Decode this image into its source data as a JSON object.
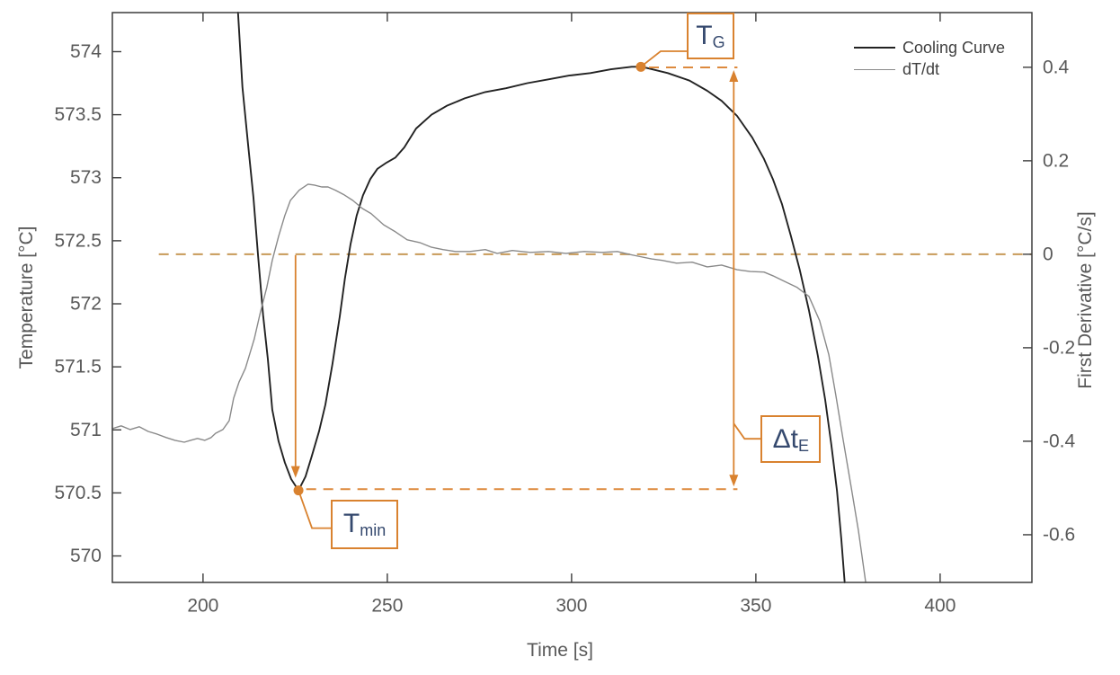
{
  "chart_data": {
    "type": "line",
    "title": "",
    "xlabel": "Time [s]",
    "ylabel_left": "Temperature [°C]",
    "ylabel_right": "First Derivative [°C/s]",
    "xlim": [
      175.4,
      424.9
    ],
    "ylim_left": [
      569.79,
      574.31
    ],
    "ylim_right": [
      -0.702,
      0.517
    ],
    "grid": "off",
    "x_ticks": [
      {
        "v": 200,
        "label": "200"
      },
      {
        "v": 250,
        "label": "250"
      },
      {
        "v": 300,
        "label": "300"
      },
      {
        "v": 350,
        "label": "350"
      },
      {
        "v": 400,
        "label": "400"
      }
    ],
    "y_ticks_left": [
      {
        "v": 574,
        "label": "574"
      },
      {
        "v": 573.5,
        "label": "573.5"
      },
      {
        "v": 573,
        "label": "573"
      },
      {
        "v": 572.5,
        "label": "572.5"
      },
      {
        "v": 572,
        "label": "572"
      },
      {
        "v": 571.5,
        "label": "571.5"
      },
      {
        "v": 571,
        "label": "571"
      },
      {
        "v": 570.5,
        "label": "570.5"
      },
      {
        "v": 570,
        "label": "570"
      }
    ],
    "y_ticks_right": [
      {
        "v": 0.4,
        "label": "0.4"
      },
      {
        "v": 0.2,
        "label": "0.2"
      },
      {
        "v": 0,
        "label": "0"
      },
      {
        "v": -0.2,
        "label": "-0.2"
      },
      {
        "v": -0.4,
        "label": "-0.4"
      },
      {
        "v": -0.6,
        "label": "-0.6"
      }
    ],
    "legend": {
      "position": "top-right-inside",
      "entries": [
        {
          "label": "Cooling Curve",
          "color": "#222222",
          "width": 2
        },
        {
          "label": "dT/dt",
          "color": "#8a8a8a",
          "width": 1.5
        }
      ]
    },
    "series": [
      {
        "name": "Cooling Curve",
        "axis": "left",
        "color": "#222222",
        "width": 1.9,
        "points": [
          [
            209.5,
            574.31
          ],
          [
            210.7,
            573.72
          ],
          [
            212.2,
            573.27
          ],
          [
            213.7,
            572.84
          ],
          [
            214.9,
            572.39
          ],
          [
            216.3,
            571.91
          ],
          [
            217.6,
            571.56
          ],
          [
            218.8,
            571.16
          ],
          [
            220.5,
            570.91
          ],
          [
            222.2,
            570.74
          ],
          [
            223.9,
            570.61
          ],
          [
            225.9,
            570.52
          ],
          [
            227.8,
            570.63
          ],
          [
            229.5,
            570.79
          ],
          [
            231.5,
            570.99
          ],
          [
            233.2,
            571.2
          ],
          [
            235.1,
            571.52
          ],
          [
            237.1,
            571.9
          ],
          [
            238.5,
            572.2
          ],
          [
            240,
            572.47
          ],
          [
            241.7,
            572.7
          ],
          [
            243.4,
            572.86
          ],
          [
            245.4,
            572.99
          ],
          [
            247.3,
            573.07
          ],
          [
            249.8,
            573.12
          ],
          [
            252.2,
            573.16
          ],
          [
            254.6,
            573.24
          ],
          [
            257.8,
            573.39
          ],
          [
            262,
            573.5
          ],
          [
            266.1,
            573.57
          ],
          [
            271,
            573.63
          ],
          [
            276.6,
            573.68
          ],
          [
            282.2,
            573.71
          ],
          [
            288,
            573.75
          ],
          [
            293.7,
            573.78
          ],
          [
            299.3,
            573.81
          ],
          [
            305.1,
            573.83
          ],
          [
            310.7,
            573.86
          ],
          [
            316.3,
            573.88
          ],
          [
            318.8,
            573.88
          ],
          [
            320.5,
            573.87
          ],
          [
            326.1,
            573.83
          ],
          [
            332,
            573.77
          ],
          [
            336.8,
            573.69
          ],
          [
            340.7,
            573.61
          ],
          [
            344.9,
            573.49
          ],
          [
            349,
            573.32
          ],
          [
            352.2,
            573.15
          ],
          [
            354.6,
            572.99
          ],
          [
            357.1,
            572.79
          ],
          [
            359.5,
            572.54
          ],
          [
            361.9,
            572.27
          ],
          [
            364.4,
            571.95
          ],
          [
            366.8,
            571.59
          ],
          [
            368.8,
            571.24
          ],
          [
            370.5,
            570.88
          ],
          [
            372,
            570.52
          ],
          [
            373.2,
            570.13
          ],
          [
            374.1,
            569.79
          ]
        ]
      },
      {
        "name": "dT/dt",
        "axis": "right",
        "color": "#8a8a8a",
        "width": 1.4,
        "points": [
          [
            175.4,
            -0.373
          ],
          [
            177.8,
            -0.367
          ],
          [
            180.2,
            -0.375
          ],
          [
            182.7,
            -0.369
          ],
          [
            185.1,
            -0.379
          ],
          [
            187.6,
            -0.385
          ],
          [
            190,
            -0.392
          ],
          [
            192.4,
            -0.398
          ],
          [
            194.9,
            -0.402
          ],
          [
            196.6,
            -0.398
          ],
          [
            198.5,
            -0.394
          ],
          [
            200.5,
            -0.398
          ],
          [
            202.2,
            -0.392
          ],
          [
            203.4,
            -0.383
          ],
          [
            205.4,
            -0.375
          ],
          [
            207.1,
            -0.356
          ],
          [
            208.3,
            -0.308
          ],
          [
            209.8,
            -0.273
          ],
          [
            211.5,
            -0.244
          ],
          [
            213.9,
            -0.181
          ],
          [
            215.6,
            -0.123
          ],
          [
            217.3,
            -0.071
          ],
          [
            218.8,
            -0.013
          ],
          [
            220.5,
            0.038
          ],
          [
            222.2,
            0.083
          ],
          [
            223.7,
            0.115
          ],
          [
            226.1,
            0.137
          ],
          [
            228.5,
            0.15
          ],
          [
            230.2,
            0.148
          ],
          [
            232.2,
            0.144
          ],
          [
            233.9,
            0.144
          ],
          [
            235.9,
            0.137
          ],
          [
            238.3,
            0.127
          ],
          [
            240.7,
            0.115
          ],
          [
            243.2,
            0.098
          ],
          [
            245.6,
            0.087
          ],
          [
            249,
            0.063
          ],
          [
            252.2,
            0.048
          ],
          [
            255.4,
            0.031
          ],
          [
            258.8,
            0.025
          ],
          [
            262,
            0.015
          ],
          [
            265.1,
            0.01
          ],
          [
            268.5,
            0.006
          ],
          [
            272.4,
            0.006
          ],
          [
            276.6,
            0.01
          ],
          [
            279.8,
            0.002
          ],
          [
            283.9,
            0.008
          ],
          [
            288.8,
            0.004
          ],
          [
            293.7,
            0.006
          ],
          [
            298.5,
            0.002
          ],
          [
            303.4,
            0.006
          ],
          [
            308.3,
            0.004
          ],
          [
            312.4,
            0.006
          ],
          [
            315.6,
            0
          ],
          [
            318,
            -0.004
          ],
          [
            321.7,
            -0.01
          ],
          [
            324.6,
            -0.013
          ],
          [
            328.5,
            -0.019
          ],
          [
            332.7,
            -0.017
          ],
          [
            336.8,
            -0.027
          ],
          [
            340.7,
            -0.023
          ],
          [
            344.9,
            -0.033
          ],
          [
            348.5,
            -0.037
          ],
          [
            352.2,
            -0.038
          ],
          [
            354.6,
            -0.046
          ],
          [
            357.8,
            -0.058
          ],
          [
            361.2,
            -0.071
          ],
          [
            364.4,
            -0.09
          ],
          [
            367.3,
            -0.142
          ],
          [
            369.8,
            -0.215
          ],
          [
            371.7,
            -0.302
          ],
          [
            373.7,
            -0.398
          ],
          [
            375.9,
            -0.5
          ],
          [
            377.8,
            -0.59
          ],
          [
            379.8,
            -0.702
          ]
        ]
      }
    ],
    "annotations": {
      "zero_line": {
        "axis": "right",
        "value": 0,
        "t_range": [
          188,
          424.9
        ]
      },
      "tg": {
        "label_main": "T",
        "label_sub": "G",
        "t": 318.8,
        "T": 573.88
      },
      "tmin": {
        "label_main": "T",
        "label_sub": "min",
        "t": 225.9,
        "T": 570.52
      },
      "delta_te": {
        "label_main": "Δt",
        "label_sub": "E",
        "arrow_t": 344,
        "T_top": 573.875,
        "T_bottom": 570.53
      },
      "tg_level_line": {
        "T": 573.875,
        "t_range": [
          321,
          345
        ]
      },
      "tmin_level_line": {
        "T": 570.53,
        "t_range": [
          228,
          345
        ]
      },
      "undercooling_arrow": {
        "t": 225.1,
        "from_derivative": 0,
        "to_T": 570.62
      }
    },
    "colors": {
      "cooling_curve": "#222222",
      "derivative": "#8a8a8a",
      "annotation": "#d9822f",
      "dashed_level": "#dd8a3e",
      "dashed_zero": "#c79a58",
      "label_text": "#35496e",
      "axis_text": "#595959",
      "axis_line": "#3c3c3c",
      "background": "#ffffff"
    }
  }
}
